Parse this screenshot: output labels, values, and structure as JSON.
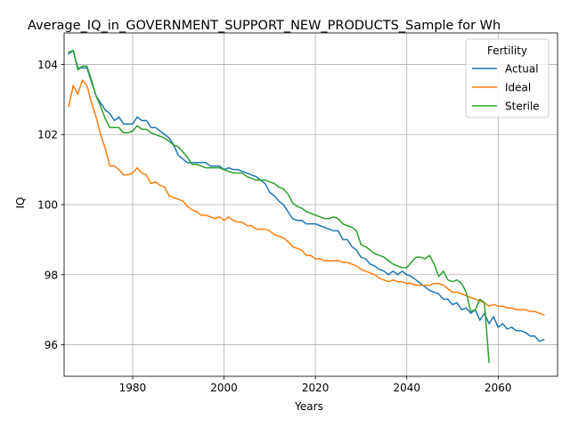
{
  "chart_data": {
    "type": "line",
    "title": "Average_IQ_in_GOVERNMENT_SUPPORT_NEW_PRODUCTS_Sample for Wh",
    "xlabel": "Years",
    "ylabel": "IQ",
    "xlim": [
      1965,
      2073
    ],
    "ylim": [
      95.1,
      104.9
    ],
    "xticks": [
      1980,
      2000,
      2020,
      2040,
      2060
    ],
    "yticks": [
      96,
      98,
      100,
      102,
      104
    ],
    "grid": true,
    "legend": {
      "title": "Fertility",
      "placement": "top-right"
    },
    "series": [
      {
        "name": "Actual",
        "color": "#1f77b4",
        "points": [
          [
            1966,
            104.3
          ],
          [
            1967,
            104.4
          ],
          [
            1968,
            103.9
          ],
          [
            1969,
            103.9
          ],
          [
            1970,
            103.9
          ],
          [
            1971,
            103.5
          ],
          [
            1972,
            103.1
          ],
          [
            1973,
            102.9
          ],
          [
            1974,
            102.7
          ],
          [
            1975,
            102.6
          ],
          [
            1976,
            102.4
          ],
          [
            1977,
            102.5
          ],
          [
            1978,
            102.3
          ],
          [
            1979,
            102.3
          ],
          [
            1980,
            102.3
          ],
          [
            1981,
            102.5
          ],
          [
            1982,
            102.4
          ],
          [
            1983,
            102.4
          ],
          [
            1984,
            102.2
          ],
          [
            1985,
            102.2
          ],
          [
            1986,
            102.1
          ],
          [
            1987,
            102.0
          ],
          [
            1988,
            101.9
          ],
          [
            1989,
            101.7
          ],
          [
            1990,
            101.4
          ],
          [
            1991,
            101.3
          ],
          [
            1992,
            101.2
          ],
          [
            1993,
            101.2
          ],
          [
            1994,
            101.2
          ],
          [
            1995,
            101.2
          ],
          [
            1996,
            101.2
          ],
          [
            1997,
            101.1
          ],
          [
            1998,
            101.1
          ],
          [
            1999,
            101.1
          ],
          [
            2000,
            101.0
          ],
          [
            2001,
            101.05
          ],
          [
            2002,
            101.0
          ],
          [
            2003,
            101.0
          ],
          [
            2004,
            100.95
          ],
          [
            2005,
            100.9
          ],
          [
            2006,
            100.85
          ],
          [
            2007,
            100.8
          ],
          [
            2008,
            100.7
          ],
          [
            2009,
            100.6
          ],
          [
            2010,
            100.35
          ],
          [
            2011,
            100.25
          ],
          [
            2012,
            100.1
          ],
          [
            2013,
            100.0
          ],
          [
            2014,
            99.8
          ],
          [
            2015,
            99.6
          ],
          [
            2016,
            99.55
          ],
          [
            2017,
            99.55
          ],
          [
            2018,
            99.45
          ],
          [
            2019,
            99.45
          ],
          [
            2020,
            99.45
          ],
          [
            2021,
            99.4
          ],
          [
            2022,
            99.35
          ],
          [
            2023,
            99.3
          ],
          [
            2024,
            99.25
          ],
          [
            2025,
            99.25
          ],
          [
            2026,
            99.0
          ],
          [
            2027,
            99.0
          ],
          [
            2028,
            98.8
          ],
          [
            2029,
            98.7
          ],
          [
            2030,
            98.5
          ],
          [
            2031,
            98.45
          ],
          [
            2032,
            98.3
          ],
          [
            2033,
            98.25
          ],
          [
            2034,
            98.15
          ],
          [
            2035,
            98.1
          ],
          [
            2036,
            98.0
          ],
          [
            2037,
            98.1
          ],
          [
            2038,
            98.0
          ],
          [
            2039,
            98.1
          ],
          [
            2040,
            98.0
          ],
          [
            2041,
            97.95
          ],
          [
            2042,
            97.85
          ],
          [
            2043,
            97.75
          ],
          [
            2044,
            97.65
          ],
          [
            2045,
            97.55
          ],
          [
            2046,
            97.5
          ],
          [
            2047,
            97.45
          ],
          [
            2048,
            97.3
          ],
          [
            2049,
            97.3
          ],
          [
            2050,
            97.15
          ],
          [
            2051,
            97.2
          ],
          [
            2052,
            97.0
          ],
          [
            2053,
            97.05
          ],
          [
            2054,
            96.9
          ],
          [
            2055,
            97.0
          ],
          [
            2056,
            96.7
          ],
          [
            2057,
            96.9
          ],
          [
            2058,
            96.6
          ],
          [
            2059,
            96.8
          ],
          [
            2060,
            96.5
          ],
          [
            2061,
            96.6
          ],
          [
            2062,
            96.45
          ],
          [
            2063,
            96.5
          ],
          [
            2064,
            96.4
          ],
          [
            2065,
            96.4
          ],
          [
            2066,
            96.35
          ],
          [
            2067,
            96.25
          ],
          [
            2068,
            96.25
          ],
          [
            2069,
            96.1
          ],
          [
            2070,
            96.15
          ]
        ]
      },
      {
        "name": "Ideal",
        "color": "#ff7f0e",
        "points": [
          [
            1966,
            102.8
          ],
          [
            1967,
            103.4
          ],
          [
            1968,
            103.15
          ],
          [
            1969,
            103.55
          ],
          [
            1970,
            103.4
          ],
          [
            1971,
            102.9
          ],
          [
            1972,
            102.5
          ],
          [
            1973,
            102.0
          ],
          [
            1974,
            101.6
          ],
          [
            1975,
            101.1
          ],
          [
            1976,
            101.1
          ],
          [
            1977,
            101.0
          ],
          [
            1978,
            100.85
          ],
          [
            1979,
            100.85
          ],
          [
            1980,
            100.9
          ],
          [
            1981,
            101.05
          ],
          [
            1982,
            100.9
          ],
          [
            1983,
            100.85
          ],
          [
            1984,
            100.6
          ],
          [
            1985,
            100.65
          ],
          [
            1986,
            100.55
          ],
          [
            1987,
            100.5
          ],
          [
            1988,
            100.25
          ],
          [
            1989,
            100.2
          ],
          [
            1990,
            100.15
          ],
          [
            1991,
            100.1
          ],
          [
            1992,
            99.95
          ],
          [
            1993,
            99.85
          ],
          [
            1994,
            99.8
          ],
          [
            1995,
            99.7
          ],
          [
            1996,
            99.7
          ],
          [
            1997,
            99.65
          ],
          [
            1998,
            99.6
          ],
          [
            1999,
            99.65
          ],
          [
            2000,
            99.55
          ],
          [
            2001,
            99.65
          ],
          [
            2002,
            99.55
          ],
          [
            2003,
            99.5
          ],
          [
            2004,
            99.5
          ],
          [
            2005,
            99.4
          ],
          [
            2006,
            99.4
          ],
          [
            2007,
            99.3
          ],
          [
            2008,
            99.3
          ],
          [
            2009,
            99.3
          ],
          [
            2010,
            99.25
          ],
          [
            2011,
            99.15
          ],
          [
            2012,
            99.1
          ],
          [
            2013,
            99.05
          ],
          [
            2014,
            98.95
          ],
          [
            2015,
            98.8
          ],
          [
            2016,
            98.75
          ],
          [
            2017,
            98.7
          ],
          [
            2018,
            98.55
          ],
          [
            2019,
            98.55
          ],
          [
            2020,
            98.45
          ],
          [
            2021,
            98.45
          ],
          [
            2022,
            98.4
          ],
          [
            2023,
            98.4
          ],
          [
            2024,
            98.4
          ],
          [
            2025,
            98.4
          ],
          [
            2026,
            98.35
          ],
          [
            2027,
            98.35
          ],
          [
            2028,
            98.3
          ],
          [
            2029,
            98.25
          ],
          [
            2030,
            98.15
          ],
          [
            2031,
            98.1
          ],
          [
            2032,
            98.05
          ],
          [
            2033,
            98.0
          ],
          [
            2034,
            97.9
          ],
          [
            2035,
            97.85
          ],
          [
            2036,
            97.8
          ],
          [
            2037,
            97.85
          ],
          [
            2038,
            97.8
          ],
          [
            2039,
            97.8
          ],
          [
            2040,
            97.75
          ],
          [
            2041,
            97.75
          ],
          [
            2042,
            97.7
          ],
          [
            2043,
            97.7
          ],
          [
            2044,
            97.7
          ],
          [
            2045,
            97.7
          ],
          [
            2046,
            97.75
          ],
          [
            2047,
            97.75
          ],
          [
            2048,
            97.7
          ],
          [
            2049,
            97.6
          ],
          [
            2050,
            97.5
          ],
          [
            2051,
            97.5
          ],
          [
            2052,
            97.45
          ],
          [
            2053,
            97.4
          ],
          [
            2054,
            97.35
          ],
          [
            2055,
            97.3
          ],
          [
            2056,
            97.25
          ],
          [
            2057,
            97.2
          ],
          [
            2058,
            97.1
          ],
          [
            2059,
            97.15
          ],
          [
            2060,
            97.1
          ],
          [
            2061,
            97.1
          ],
          [
            2062,
            97.05
          ],
          [
            2063,
            97.05
          ],
          [
            2064,
            97.0
          ],
          [
            2065,
            97.0
          ],
          [
            2066,
            97.0
          ],
          [
            2067,
            96.95
          ],
          [
            2068,
            96.95
          ],
          [
            2069,
            96.9
          ],
          [
            2070,
            96.85
          ]
        ]
      },
      {
        "name": "Sterile",
        "color": "#2ca02c",
        "points": [
          [
            1966,
            104.35
          ],
          [
            1967,
            104.4
          ],
          [
            1968,
            103.85
          ],
          [
            1969,
            103.95
          ],
          [
            1970,
            103.95
          ],
          [
            1971,
            103.55
          ],
          [
            1972,
            103.1
          ],
          [
            1973,
            102.8
          ],
          [
            1974,
            102.45
          ],
          [
            1975,
            102.2
          ],
          [
            1976,
            102.2
          ],
          [
            1977,
            102.2
          ],
          [
            1978,
            102.05
          ],
          [
            1979,
            102.05
          ],
          [
            1980,
            102.1
          ],
          [
            1981,
            102.25
          ],
          [
            1982,
            102.15
          ],
          [
            1983,
            102.15
          ],
          [
            1984,
            102.05
          ],
          [
            1985,
            102.0
          ],
          [
            1986,
            101.95
          ],
          [
            1987,
            101.9
          ],
          [
            1988,
            101.8
          ],
          [
            1989,
            101.7
          ],
          [
            1990,
            101.65
          ],
          [
            1991,
            101.5
          ],
          [
            1992,
            101.35
          ],
          [
            1993,
            101.15
          ],
          [
            1994,
            101.15
          ],
          [
            1995,
            101.1
          ],
          [
            1996,
            101.05
          ],
          [
            1997,
            101.05
          ],
          [
            1998,
            101.05
          ],
          [
            1999,
            101.05
          ],
          [
            2000,
            101.0
          ],
          [
            2001,
            100.95
          ],
          [
            2002,
            100.9
          ],
          [
            2003,
            100.9
          ],
          [
            2004,
            100.9
          ],
          [
            2005,
            100.8
          ],
          [
            2006,
            100.75
          ],
          [
            2007,
            100.7
          ],
          [
            2008,
            100.7
          ],
          [
            2009,
            100.7
          ],
          [
            2010,
            100.65
          ],
          [
            2011,
            100.6
          ],
          [
            2012,
            100.5
          ],
          [
            2013,
            100.45
          ],
          [
            2014,
            100.3
          ],
          [
            2015,
            100.05
          ],
          [
            2016,
            99.95
          ],
          [
            2017,
            99.9
          ],
          [
            2018,
            99.8
          ],
          [
            2019,
            99.75
          ],
          [
            2020,
            99.7
          ],
          [
            2021,
            99.65
          ],
          [
            2022,
            99.6
          ],
          [
            2023,
            99.6
          ],
          [
            2024,
            99.65
          ],
          [
            2025,
            99.6
          ],
          [
            2026,
            99.45
          ],
          [
            2027,
            99.4
          ],
          [
            2028,
            99.35
          ],
          [
            2029,
            99.25
          ],
          [
            2030,
            98.85
          ],
          [
            2031,
            98.8
          ],
          [
            2032,
            98.7
          ],
          [
            2033,
            98.6
          ],
          [
            2034,
            98.55
          ],
          [
            2035,
            98.5
          ],
          [
            2036,
            98.4
          ],
          [
            2037,
            98.3
          ],
          [
            2038,
            98.25
          ],
          [
            2039,
            98.2
          ],
          [
            2040,
            98.2
          ],
          [
            2041,
            98.35
          ],
          [
            2042,
            98.5
          ],
          [
            2043,
            98.5
          ],
          [
            2044,
            98.45
          ],
          [
            2045,
            98.55
          ],
          [
            2046,
            98.3
          ],
          [
            2047,
            97.95
          ],
          [
            2048,
            98.1
          ],
          [
            2049,
            97.85
          ],
          [
            2050,
            97.8
          ],
          [
            2051,
            97.85
          ],
          [
            2052,
            97.75
          ],
          [
            2053,
            97.5
          ],
          [
            2054,
            96.95
          ],
          [
            2055,
            97.0
          ],
          [
            2056,
            97.3
          ],
          [
            2057,
            97.2
          ],
          [
            2058,
            95.5
          ]
        ]
      }
    ]
  }
}
